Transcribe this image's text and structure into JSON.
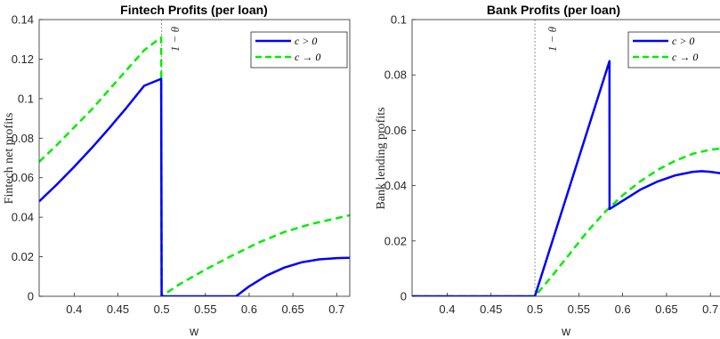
{
  "chart_data": [
    {
      "type": "line",
      "title": "Fintech Profits (per loan)",
      "xlabel": "w",
      "ylabel": "Fintech net profits",
      "xlim": [
        0.36,
        0.715
      ],
      "ylim": [
        0,
        0.14
      ],
      "xticks": [
        0.4,
        0.45,
        0.5,
        0.55,
        0.6,
        0.65,
        0.7
      ],
      "xtick_labels": [
        "0.4",
        "0.45",
        "0.5",
        "0.55",
        "0.6",
        "0.65",
        "0.7"
      ],
      "yticks": [
        0,
        0.02,
        0.04,
        0.06,
        0.08,
        0.1,
        0.12,
        0.14
      ],
      "ytick_labels": [
        "0",
        "0.02",
        "0.04",
        "0.06",
        "0.08",
        "0.1",
        "0.12",
        "0.14"
      ],
      "annotation": "1 − θ",
      "vline": 0.5,
      "legend": "top-right",
      "series": [
        {
          "name": "c > 0",
          "color": "#0000ff",
          "style": "solid",
          "x": [
            0.36,
            0.38,
            0.4,
            0.42,
            0.44,
            0.46,
            0.48,
            0.4995,
            0.5,
            0.501,
            0.55,
            0.585,
            0.6,
            0.62,
            0.64,
            0.66,
            0.68,
            0.7,
            0.715
          ],
          "y": [
            0.048,
            0.0565,
            0.0655,
            0.075,
            0.085,
            0.0955,
            0.1065,
            0.11,
            0,
            0,
            0,
            0,
            0.005,
            0.0105,
            0.0145,
            0.0172,
            0.0187,
            0.0193,
            0.0195
          ]
        },
        {
          "name": "c → 0",
          "color": "#00ee00",
          "style": "dashed",
          "x": [
            0.36,
            0.38,
            0.4,
            0.42,
            0.44,
            0.46,
            0.48,
            0.4995,
            0.5,
            0.501,
            0.52,
            0.55,
            0.58,
            0.61,
            0.64,
            0.67,
            0.7,
            0.715
          ],
          "y": [
            0.068,
            0.0765,
            0.0855,
            0.0945,
            0.1045,
            0.1145,
            0.1245,
            0.131,
            0.0003,
            0.0003,
            0.006,
            0.0135,
            0.0205,
            0.027,
            0.0325,
            0.0365,
            0.0395,
            0.041
          ]
        }
      ]
    },
    {
      "type": "line",
      "title": "Bank Profits (per loan)",
      "xlabel": "w",
      "ylabel": "Bank lending profits",
      "xlim": [
        0.36,
        0.715
      ],
      "ylim": [
        0,
        0.1
      ],
      "xticks": [
        0.4,
        0.45,
        0.5,
        0.55,
        0.6,
        0.65,
        0.7
      ],
      "xtick_labels": [
        "0.4",
        "0.45",
        "0.5",
        "0.55",
        "0.6",
        "0.65",
        "0.7"
      ],
      "yticks": [
        0,
        0.02,
        0.04,
        0.06,
        0.08,
        0.1
      ],
      "ytick_labels": [
        "0",
        "0.02",
        "0.04",
        "0.06",
        "0.08",
        "0.1"
      ],
      "annotation": "1 − θ",
      "vline": 0.5,
      "legend": "top-right",
      "series": [
        {
          "name": "c > 0",
          "color": "#0000ff",
          "style": "solid",
          "x": [
            0.36,
            0.4,
            0.45,
            0.5,
            0.585,
            0.5851,
            0.6,
            0.62,
            0.64,
            0.66,
            0.68,
            0.69,
            0.7,
            0.715
          ],
          "y": [
            0,
            0,
            0,
            0,
            0.085,
            0.0315,
            0.0345,
            0.0385,
            0.0415,
            0.0437,
            0.045,
            0.0452,
            0.045,
            0.0443
          ]
        },
        {
          "name": "c → 0",
          "color": "#00ee00",
          "style": "dashed",
          "x": [
            0.36,
            0.4,
            0.45,
            0.5,
            0.52,
            0.54,
            0.56,
            0.58,
            0.6,
            0.62,
            0.64,
            0.66,
            0.68,
            0.7,
            0.715
          ],
          "y": [
            0,
            0,
            0,
            0,
            0.0075,
            0.0155,
            0.0235,
            0.0305,
            0.0365,
            0.0415,
            0.0457,
            0.049,
            0.0515,
            0.053,
            0.0535
          ]
        }
      ]
    }
  ]
}
